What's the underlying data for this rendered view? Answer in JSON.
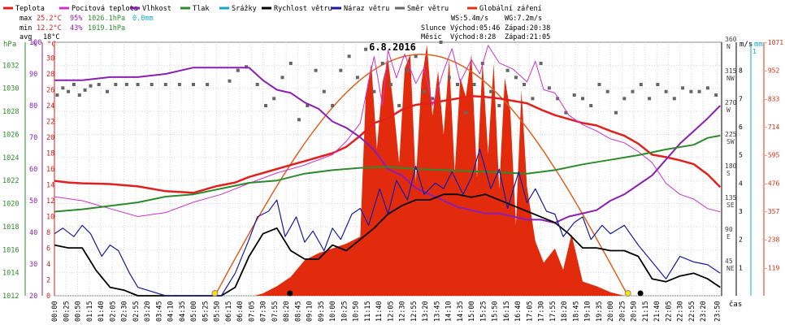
{
  "header": {
    "legend": [
      {
        "label": "Teplota",
        "color": "#e0201c"
      },
      {
        "label": "Pocitová teplota",
        "color": "#cc33cc"
      },
      {
        "label": "Vlhkost",
        "color": "#8a1fb5"
      },
      {
        "label": "Tlak",
        "color": "#2d8a2d"
      },
      {
        "label": "Srážky",
        "color": "#12a8c8"
      },
      {
        "label": "Rychlost větru",
        "color": "#000000"
      },
      {
        "label": "Náraz větru",
        "color": "#1a1aa0"
      },
      {
        "label": "Směr větru",
        "color": "#666666"
      },
      {
        "label": "Globální záření",
        "color": "#e03010"
      }
    ],
    "stats": {
      "max_label": "max",
      "max_temp": "25.2°C",
      "max_hum": "95%",
      "max_press": "1026.1hPa",
      "max_rain": "0.0mm",
      "min_label": "min",
      "min_temp": "12.2°C",
      "min_hum": "43%",
      "min_press": "1019.1hPa",
      "avg_label": "avg",
      "avg_temp": "18°C"
    },
    "wind": {
      "ws": "WS:5.4m/s",
      "wg": "WG:7.2m/s"
    },
    "sun": {
      "label": "Slunce",
      "rise": "Východ:05:46",
      "set": "Západ:20:38"
    },
    "moon": {
      "label": "Měsíc",
      "rise": "Východ:8:28",
      "set": "Západ:21:05"
    }
  },
  "chart_data": {
    "type": "line",
    "title": "6.8.2016",
    "xlabel": "čas",
    "x_ticks": [
      "00:00",
      "00:25",
      "00:50",
      "01:15",
      "01:40",
      "02:05",
      "02:30",
      "02:55",
      "03:20",
      "03:45",
      "04:10",
      "04:35",
      "05:00",
      "05:25",
      "05:50",
      "06:15",
      "06:40",
      "07:05",
      "07:30",
      "07:55",
      "08:20",
      "08:45",
      "09:10",
      "09:35",
      "10:00",
      "10:25",
      "10:50",
      "11:15",
      "11:40",
      "12:05",
      "12:30",
      "12:55",
      "13:20",
      "13:45",
      "14:10",
      "14:35",
      "15:00",
      "15:25",
      "15:50",
      "16:15",
      "16:40",
      "17:05",
      "17:30",
      "17:55",
      "18:20",
      "18:45",
      "19:10",
      "19:35",
      "20:00",
      "20:25",
      "20:50",
      "21:15",
      "21:40",
      "22:05",
      "22:30",
      "22:55",
      "23:20",
      "23:50"
    ],
    "axes": {
      "pressure": {
        "unit": "hPa",
        "ylim": [
          1012,
          1034
        ],
        "ticks": [
          1012,
          1014,
          1016,
          1018,
          1020,
          1022,
          1024,
          1026,
          1028,
          1030,
          1032
        ]
      },
      "humidity": {
        "unit": "%",
        "ylim": [
          20,
          100
        ],
        "ticks": [
          20,
          30,
          40,
          50,
          60,
          70,
          80,
          90,
          100
        ]
      },
      "temperature": {
        "unit": "°C",
        "ylim": [
          0,
          32
        ],
        "ticks": [
          0,
          2,
          4,
          6,
          8,
          10,
          12,
          14,
          16,
          18,
          20,
          22,
          24,
          26,
          28,
          30
        ]
      },
      "wind_direction": {
        "ylim": [
          0,
          360
        ],
        "ticks": [
          {
            "v": 45,
            "d": "NE"
          },
          {
            "v": 90,
            "d": "E"
          },
          {
            "v": 135,
            "d": "SE"
          },
          {
            "v": 180,
            "d": "S"
          },
          {
            "v": 225,
            "d": "SW"
          },
          {
            "v": 270,
            "d": "W"
          },
          {
            "v": 315,
            "d": "NW"
          },
          {
            "v": 360,
            "d": "N"
          }
        ]
      },
      "wind_speed": {
        "unit": "m/s",
        "ylim": [
          0,
          9
        ],
        "ticks": [
          1,
          2,
          3,
          4,
          5,
          6,
          7,
          8
        ]
      },
      "rain": {
        "unit": "mm",
        "ylim": [
          0,
          1
        ],
        "ticks": [
          1
        ]
      },
      "radiation": {
        "ylim": [
          0,
          1071
        ],
        "ticks": [
          119,
          238,
          357,
          476,
          595,
          714,
          833,
          952,
          1071
        ]
      }
    },
    "series": [
      {
        "name": "Teplota",
        "axis": "temperature",
        "color": "#e0201c",
        "width": 2.5,
        "x": [
          0,
          0.5,
          1,
          2,
          3,
          4,
          5,
          5.8,
          6.5,
          7,
          8,
          8.5,
          9,
          10,
          10.5,
          11,
          11.5,
          12,
          12.5,
          13,
          13.5,
          14,
          15,
          15.5,
          16,
          17,
          17.5,
          18,
          18.5,
          19,
          19.5,
          20,
          20.5,
          21,
          21.5,
          22,
          22.5,
          23,
          23.5,
          23.95
        ],
        "y": [
          14.5,
          14.3,
          14.2,
          14.1,
          13.8,
          13.2,
          13.0,
          13.8,
          14.3,
          15.0,
          16.0,
          16.5,
          17.0,
          18.0,
          18.8,
          20.2,
          21.8,
          22.4,
          23.5,
          24.1,
          24.3,
          24.6,
          25.2,
          25.1,
          24.9,
          24.3,
          23.5,
          22.8,
          22.3,
          21.8,
          21.5,
          20.8,
          20.2,
          19.2,
          17.8,
          17.5,
          17.1,
          16.6,
          15.3,
          13.7
        ]
      },
      {
        "name": "Pocitová teplota",
        "axis": "temperature",
        "color": "#cc33cc",
        "width": 1,
        "x": [
          0,
          1,
          2,
          3,
          4,
          5,
          6,
          7,
          8,
          9,
          10,
          10.5,
          11,
          11.3,
          11.5,
          11.8,
          12,
          12.3,
          12.6,
          13,
          13.3,
          13.6,
          14,
          14.3,
          14.6,
          15,
          15.3,
          15.6,
          16,
          16.5,
          17,
          17.3,
          17.6,
          18,
          18.5,
          19,
          19.5,
          20,
          20.5,
          21,
          21.5,
          22,
          22.5,
          23,
          23.5,
          23.95
        ],
        "y": [
          12.5,
          12.0,
          11.0,
          10.0,
          10.5,
          11.8,
          12.8,
          14.2,
          15.5,
          16.5,
          17.8,
          19.5,
          21.8,
          27.0,
          30.2,
          24.0,
          31.0,
          27.5,
          30.5,
          26.8,
          28.8,
          24.0,
          28.4,
          31.2,
          27.0,
          29.8,
          28.0,
          31.6,
          29.4,
          28.6,
          27.0,
          29.6,
          26.0,
          25.6,
          22.8,
          21.6,
          20.8,
          19.8,
          19.3,
          18.2,
          16.8,
          14.2,
          12.8,
          12.2,
          11.0,
          10.6
        ]
      },
      {
        "name": "Vlhkost",
        "axis": "humidity",
        "color": "#8a1fb5",
        "width": 2,
        "x": [
          0,
          1,
          2,
          3,
          4,
          5,
          6,
          7,
          7.5,
          8,
          8.5,
          9,
          9.5,
          10,
          10.5,
          11,
          11.5,
          12,
          12.5,
          13,
          13.5,
          14,
          14.5,
          15,
          15.5,
          16,
          16.5,
          17,
          17.5,
          18,
          18.5,
          19,
          19.5,
          20,
          20.5,
          21,
          21.5,
          22,
          22.5,
          23,
          23.5,
          23.95
        ],
        "y": [
          88,
          88,
          89,
          89,
          90,
          92,
          92,
          92,
          88,
          85,
          84,
          81,
          79,
          75,
          73,
          70,
          66,
          60,
          58,
          54,
          52,
          50,
          48,
          47,
          46,
          46,
          45,
          44,
          44,
          43,
          45,
          46,
          47,
          50,
          52,
          55,
          58,
          63,
          68,
          72,
          76,
          80
        ]
      },
      {
        "name": "Tlak",
        "axis": "pressure",
        "color": "#2d8a2d",
        "width": 2,
        "x": [
          0,
          1,
          2,
          3,
          4,
          5,
          6,
          7,
          8,
          9,
          10,
          11,
          12,
          13,
          14,
          15,
          16,
          17,
          18,
          19,
          20,
          21,
          22,
          23,
          23.5,
          23.95
        ],
        "y": [
          1019.3,
          1019.5,
          1019.8,
          1020.1,
          1020.6,
          1020.8,
          1021.3,
          1021.8,
          1022.0,
          1022.6,
          1022.9,
          1023.1,
          1023.2,
          1023.0,
          1022.9,
          1022.8,
          1022.7,
          1022.6,
          1022.9,
          1023.4,
          1023.8,
          1024.2,
          1024.7,
          1025.1,
          1025.7,
          1025.9
        ]
      },
      {
        "name": "Rychlost větru",
        "axis": "wind_speed",
        "color": "#000000",
        "width": 1.8,
        "x": [
          0,
          0.5,
          1,
          1.5,
          2,
          2.5,
          3,
          4,
          5,
          6,
          6.5,
          7,
          7.5,
          8,
          8.5,
          9,
          9.5,
          10,
          10.5,
          11,
          11.5,
          12,
          12.5,
          13,
          13.5,
          14,
          14.5,
          15,
          15.5,
          16,
          16.5,
          17,
          17.5,
          18,
          18.5,
          19,
          19.5,
          20,
          20.5,
          21,
          21.5,
          22,
          22.5,
          23,
          23.5,
          23.95
        ],
        "y": [
          1.8,
          1.7,
          1.7,
          0.9,
          0.3,
          0.2,
          0,
          0,
          0,
          0,
          0.3,
          1.4,
          2.2,
          2.4,
          1.6,
          1.3,
          1.3,
          1.8,
          1.6,
          2.0,
          2.4,
          2.9,
          3.2,
          3.4,
          3.4,
          3.6,
          3.6,
          3.5,
          3.6,
          3.4,
          3.2,
          3.0,
          2.8,
          2.6,
          2.2,
          1.7,
          1.7,
          1.6,
          1.6,
          1.4,
          0.6,
          0.5,
          0.7,
          0.8,
          0.6,
          0.3
        ]
      },
      {
        "name": "Náraz větru",
        "axis": "wind_speed",
        "color": "#1a1aa0",
        "width": 1.2,
        "x": [
          0,
          0.3,
          0.7,
          1,
          1.3,
          1.7,
          2,
          2.3,
          2.7,
          3,
          4,
          5,
          6,
          6.5,
          7,
          7.3,
          7.7,
          8,
          8.3,
          8.7,
          9,
          9.3,
          9.7,
          10,
          10.3,
          10.7,
          11,
          11.3,
          11.7,
          12,
          12.3,
          12.7,
          13,
          13.3,
          13.7,
          14,
          14.3,
          14.7,
          15,
          15.3,
          15.7,
          16,
          16.3,
          16.7,
          17,
          17.3,
          17.7,
          18,
          18.3,
          18.7,
          19,
          19.3,
          19.7,
          20,
          20.5,
          21,
          21.5,
          22,
          22.5,
          23,
          23.5,
          23.95
        ],
        "y": [
          2.2,
          2.4,
          2.1,
          2.5,
          2.2,
          1.4,
          1.8,
          1.6,
          0.8,
          0.3,
          0,
          0,
          0,
          0.8,
          2.0,
          2.8,
          3.0,
          3.4,
          2.1,
          2.8,
          1.9,
          2.3,
          1.6,
          2.4,
          2.0,
          2.9,
          3.1,
          2.5,
          3.8,
          2.9,
          4.1,
          3.4,
          4.6,
          3.6,
          4.0,
          3.8,
          4.4,
          3.6,
          4.2,
          5.2,
          3.8,
          4.5,
          3.1,
          4.4,
          3.3,
          3.8,
          3.0,
          2.9,
          2.1,
          2.6,
          2.8,
          2.0,
          2.5,
          2.2,
          2.5,
          1.8,
          1.2,
          0.6,
          1.4,
          1.2,
          1.1,
          0.8
        ]
      }
    ],
    "wind_direction_points": {
      "axis": "wind_direction",
      "color": "#666666",
      "x": [
        0.1,
        0.3,
        0.5,
        0.7,
        0.9,
        1.1,
        1.3,
        1.6,
        1.9,
        2.2,
        2.6,
        3.0,
        3.5,
        4.0,
        4.5,
        5.0,
        5.5,
        6.3,
        6.6,
        6.9,
        7.3,
        7.6,
        7.9,
        8.2,
        8.5,
        8.8,
        9.1,
        9.4,
        9.7,
        10.0,
        10.3,
        10.6,
        10.9,
        11.2,
        11.5,
        11.8,
        12.1,
        12.4,
        12.7,
        13.0,
        13.3,
        13.6,
        13.9,
        14.2,
        14.5,
        14.8,
        15.1,
        15.4,
        15.7,
        16.0,
        16.3,
        16.6,
        16.9,
        17.2,
        17.5,
        17.8,
        18.1,
        18.4,
        18.7,
        19.0,
        19.3,
        19.6,
        19.9,
        20.2,
        20.5,
        20.8,
        21.1,
        21.4,
        21.7,
        22.0,
        22.3,
        22.6,
        22.9,
        23.2,
        23.5,
        23.8
      ],
      "y": [
        285,
        295,
        290,
        300,
        285,
        292,
        298,
        300,
        290,
        300,
        300,
        300,
        300,
        300,
        300,
        300,
        300,
        305,
        320,
        325,
        300,
        270,
        280,
        310,
        330,
        250,
        270,
        320,
        290,
        270,
        320,
        340,
        310,
        350,
        290,
        330,
        300,
        270,
        320,
        340,
        290,
        280,
        360,
        310,
        300,
        260,
        300,
        330,
        290,
        270,
        320,
        310,
        300,
        280,
        330,
        295,
        280,
        260,
        285,
        280,
        270,
        300,
        290,
        260,
        280,
        290,
        300,
        280,
        300,
        290,
        280,
        295,
        290,
        290,
        295,
        285
      ]
    },
    "radiation": {
      "name": "Globální záření",
      "axis": "radiation",
      "color": "#e02000",
      "x": [
        0,
        7.2,
        7.5,
        8,
        8.5,
        9,
        9.5,
        10,
        10.5,
        11,
        11.2,
        11.4,
        11.6,
        11.8,
        12,
        12.2,
        12.4,
        12.6,
        12.8,
        13,
        13.2,
        13.4,
        13.6,
        13.8,
        14,
        14.2,
        14.4,
        14.6,
        14.8,
        15,
        15.2,
        15.4,
        15.6,
        15.8,
        16,
        16.2,
        16.4,
        16.6,
        16.8,
        17,
        17.3,
        17.6,
        18,
        18.3,
        18.6,
        19,
        19.5,
        20,
        20.5,
        23.95
      ],
      "y": [
        0,
        0,
        10,
        40,
        80,
        150,
        180,
        200,
        220,
        250,
        850,
        980,
        620,
        900,
        1000,
        800,
        560,
        960,
        1020,
        480,
        900,
        1060,
        760,
        950,
        680,
        1000,
        520,
        920,
        840,
        1020,
        500,
        990,
        600,
        980,
        450,
        920,
        780,
        300,
        870,
        460,
        230,
        140,
        200,
        110,
        260,
        60,
        40,
        15,
        0,
        0
      ]
    },
    "clear_sky_curve": {
      "axis": "radiation",
      "color": "#e06020",
      "sunrise_hour": 5.77,
      "sunset_hour": 20.63,
      "peak": 1020
    }
  },
  "right_axis_labels": {
    "wind_speed_unit": "m/s",
    "rain_unit": "mm"
  }
}
